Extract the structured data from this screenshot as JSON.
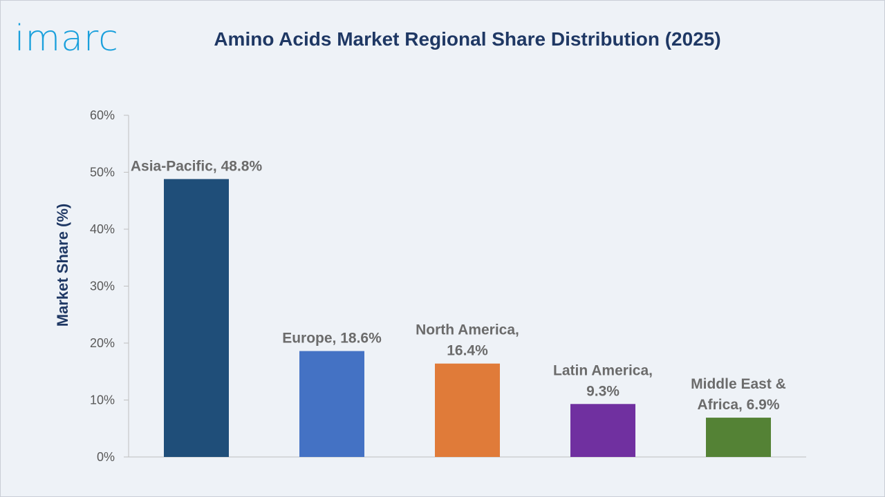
{
  "brand": {
    "logo_text": "imarc",
    "logo_color": "#1aa0dc"
  },
  "chart_data": {
    "type": "bar",
    "title": "Amino Acids Market Regional Share Distribution (2025)",
    "ylabel": "Market Share (%)",
    "xlabel": "",
    "ylim": [
      0,
      60
    ],
    "yticks": [
      0,
      10,
      20,
      30,
      40,
      50,
      60
    ],
    "ytick_labels": [
      "0%",
      "10%",
      "20%",
      "30%",
      "40%",
      "50%",
      "60%"
    ],
    "categories": [
      "Asia-Pacific",
      "Europe",
      "North America",
      "Latin America",
      "Middle East & Africa"
    ],
    "values": [
      48.8,
      18.6,
      16.4,
      9.3,
      6.9
    ],
    "data_labels": [
      [
        "Asia-Pacific, 48.8%"
      ],
      [
        "Europe, 18.6%"
      ],
      [
        "North America,",
        "16.4%"
      ],
      [
        "Latin America,",
        "9.3%"
      ],
      [
        "Middle East &",
        "Africa, 6.9%"
      ]
    ],
    "colors": [
      "#1f4e79",
      "#4472c4",
      "#e07b39",
      "#7030a0",
      "#548235"
    ],
    "grid": false,
    "legend": "none"
  }
}
